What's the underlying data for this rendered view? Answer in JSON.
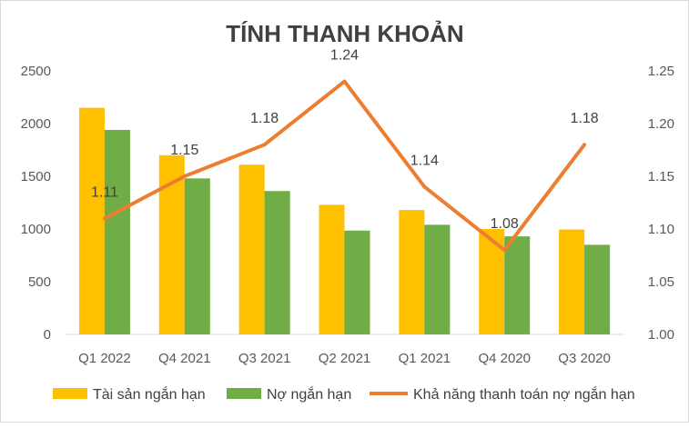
{
  "chart_data": {
    "type": "bar+line",
    "title": "TÍNH THANH KHOẢN",
    "categories": [
      "Q1 2022",
      "Q4 2021",
      "Q3 2021",
      "Q2 2021",
      "Q1 2021",
      "Q4 2020",
      "Q3 2020"
    ],
    "series": [
      {
        "name": "Tài sản ngắn hạn",
        "type": "bar",
        "axis": "left",
        "color": "#FFC000",
        "values": [
          2150,
          1700,
          1610,
          1230,
          1180,
          1000,
          995
        ]
      },
      {
        "name": "Nợ ngắn hạn",
        "type": "bar",
        "axis": "left",
        "color": "#70AD47",
        "values": [
          1940,
          1480,
          1360,
          985,
          1040,
          930,
          850
        ]
      },
      {
        "name": "Khả năng thanh toán nợ ngắn hạn",
        "type": "line",
        "axis": "right",
        "color": "#ED7D31",
        "values": [
          1.11,
          1.15,
          1.18,
          1.24,
          1.14,
          1.08,
          1.18
        ]
      }
    ],
    "y_left": {
      "min": 0,
      "max": 2500,
      "ticks": [
        "0",
        "500",
        "1000",
        "1500",
        "2000",
        "2500"
      ]
    },
    "y_right": {
      "min": 1.0,
      "max": 1.25,
      "ticks": [
        "1.00",
        "1.05",
        "1.10",
        "1.15",
        "1.20",
        "1.25"
      ]
    },
    "line_labels": [
      "1.11",
      "1.15",
      "1.18",
      "1.24",
      "1.14",
      "1.08",
      "1.18"
    ],
    "grid": false,
    "legend_position": "bottom"
  }
}
